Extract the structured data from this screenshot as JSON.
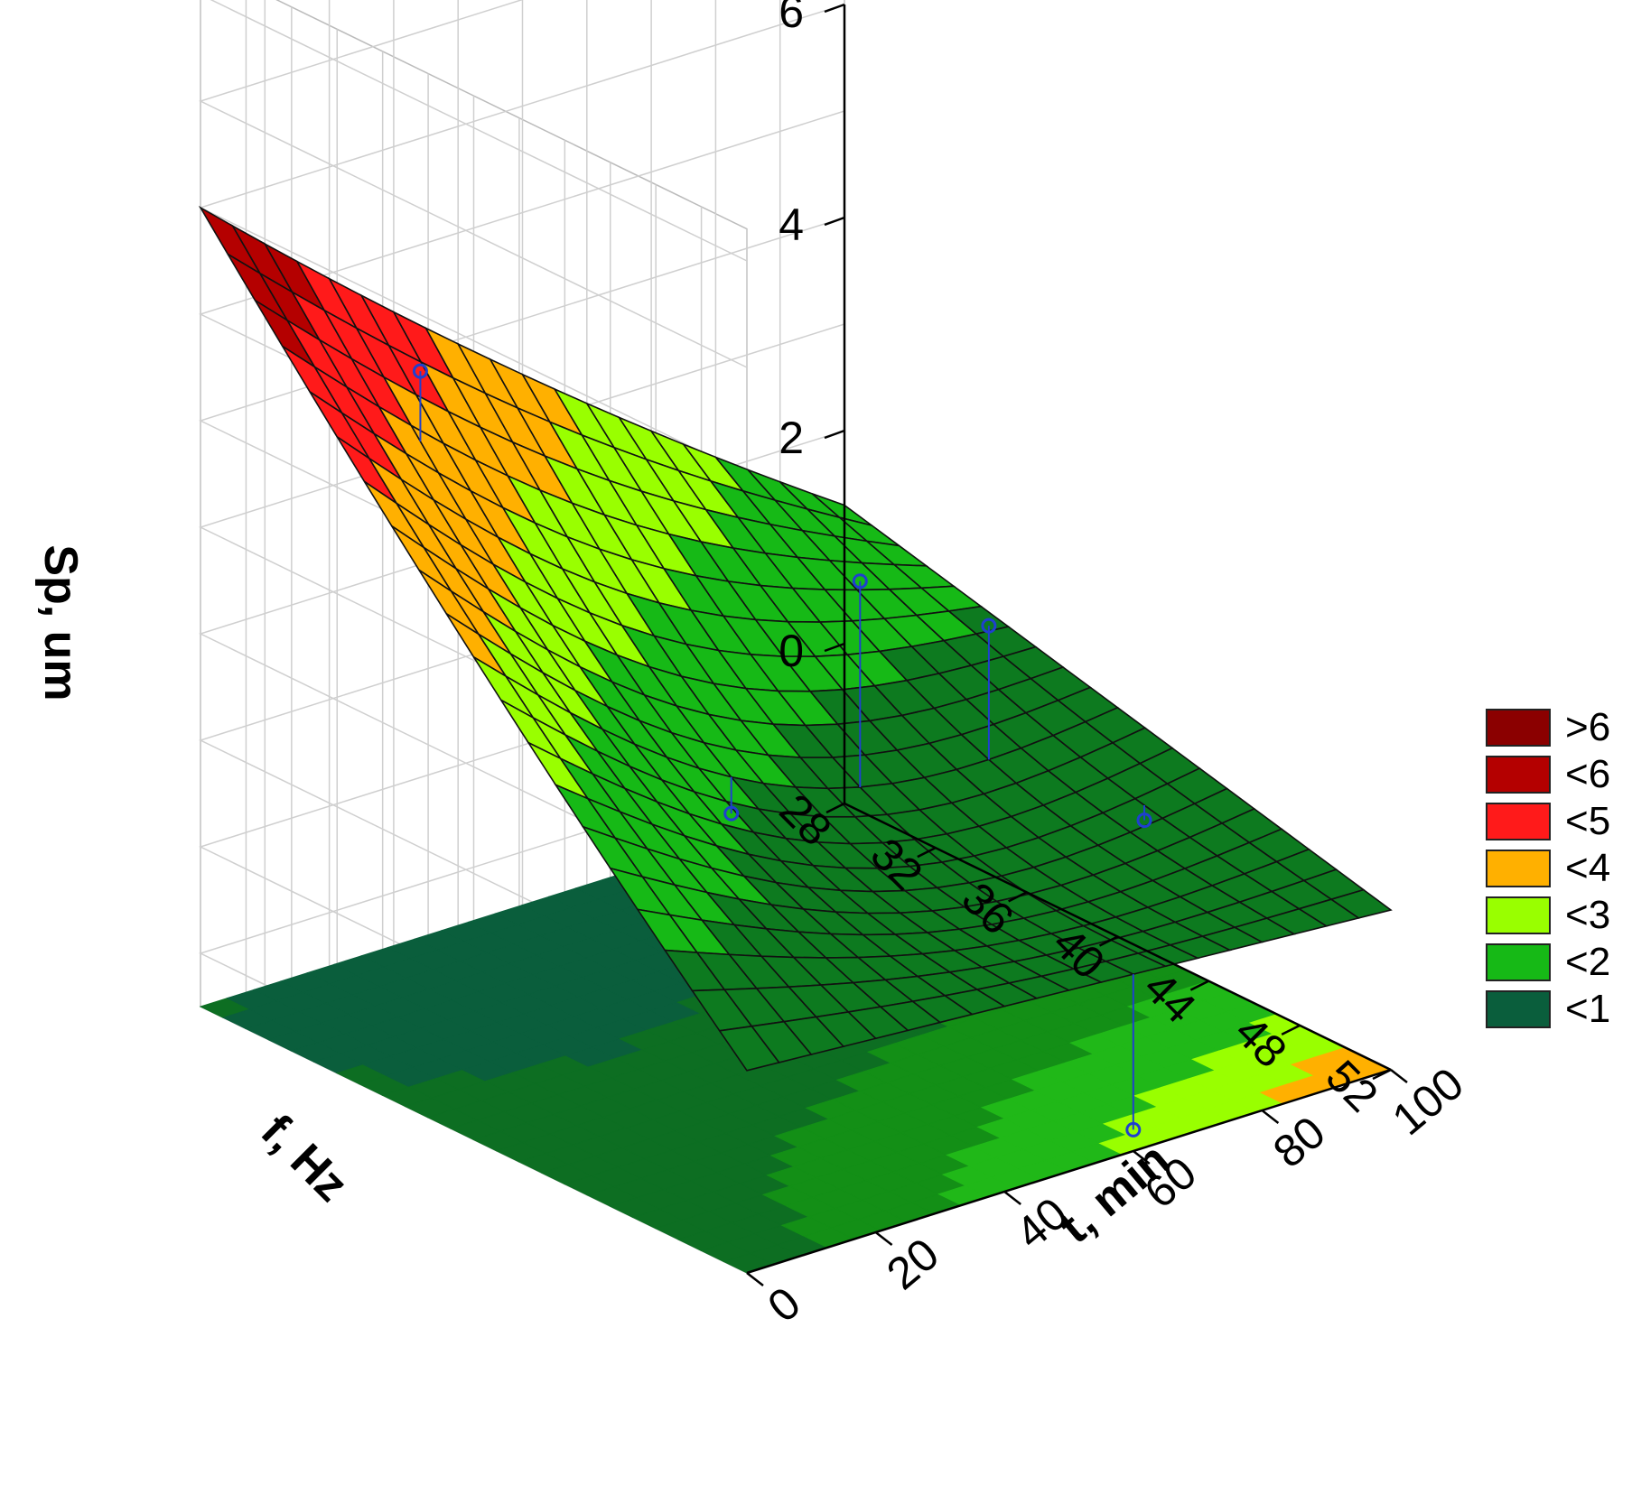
{
  "chart_data": {
    "type": "surface3d",
    "zlabel": "Sp, um",
    "xlabel": "f, Hz",
    "ylabel": "t, min",
    "x_ticks": [
      "28",
      "32",
      "36",
      "40",
      "44",
      "48",
      "52"
    ],
    "y_ticks": [
      "0",
      "20",
      "40",
      "60",
      "80",
      "100"
    ],
    "z_ticks": [
      "0",
      "2",
      "4",
      "6"
    ],
    "xlim": [
      28,
      52
    ],
    "ylim": [
      0,
      100
    ],
    "zlim": [
      -1.5,
      6
    ],
    "grid": true,
    "legend_position": "right",
    "legend": [
      {
        "label": ">6",
        "color": "#8b0000"
      },
      {
        "label": "<6",
        "color": "#b40000"
      },
      {
        "label": "<5",
        "color": "#ff1a1a"
      },
      {
        "label": "<4",
        "color": "#ffb000"
      },
      {
        "label": "<3",
        "color": "#99ff00"
      },
      {
        "label": "<2",
        "color": "#16b916"
      },
      {
        "label": "<1",
        "color": "#0a5e3c"
      }
    ],
    "surface_corners": [
      {
        "f": 28,
        "t": 100,
        "sp": 1.3
      },
      {
        "f": 28,
        "t": 0,
        "sp": 6.0
      },
      {
        "f": 52,
        "t": 0,
        "sp": 0.4
      },
      {
        "f": 52,
        "t": 100,
        "sp": 0.0
      }
    ],
    "points": [
      {
        "f": 32,
        "t": 20,
        "sp": 4.5
      },
      {
        "f": 40,
        "t": 80,
        "sp": 1.8
      },
      {
        "f": 40,
        "t": 60,
        "sp": 2.6
      },
      {
        "f": 40,
        "t": 40,
        "sp": 0.8
      },
      {
        "f": 52,
        "t": 60,
        "sp": -1.3
      },
      {
        "f": 44,
        "t": 90,
        "sp": 0.2
      }
    ]
  }
}
